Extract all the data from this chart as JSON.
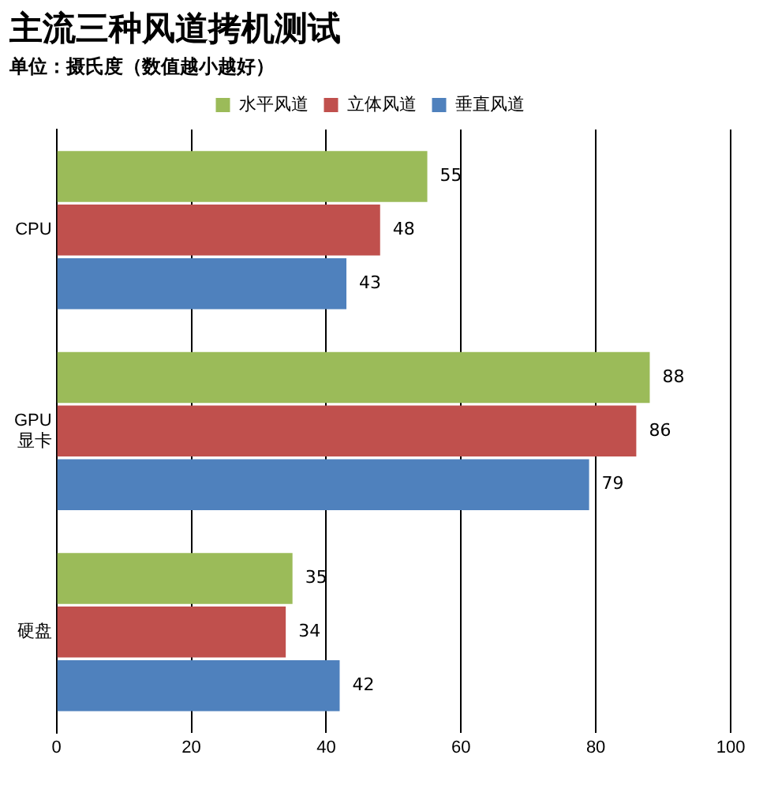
{
  "chart_data": {
    "type": "bar",
    "orientation": "horizontal",
    "title": "主流三种风道拷机测试",
    "subtitle": "单位：摄氏度（数值越小越好）",
    "categories": [
      "CPU",
      "GPU 显卡",
      "硬盘"
    ],
    "series": [
      {
        "name": "水平风道",
        "color": "#9bbb59",
        "values": [
          55,
          88,
          35
        ]
      },
      {
        "name": "立体风道",
        "color": "#c0504d",
        "values": [
          48,
          86,
          34
        ]
      },
      {
        "name": "垂直风道",
        "color": "#4f81bd",
        "values": [
          43,
          79,
          42
        ]
      }
    ],
    "xlim": [
      0,
      100
    ],
    "xticks": [
      0,
      20,
      40,
      60,
      80,
      100
    ],
    "grid": "x",
    "legend": "top",
    "data_labels": true
  }
}
